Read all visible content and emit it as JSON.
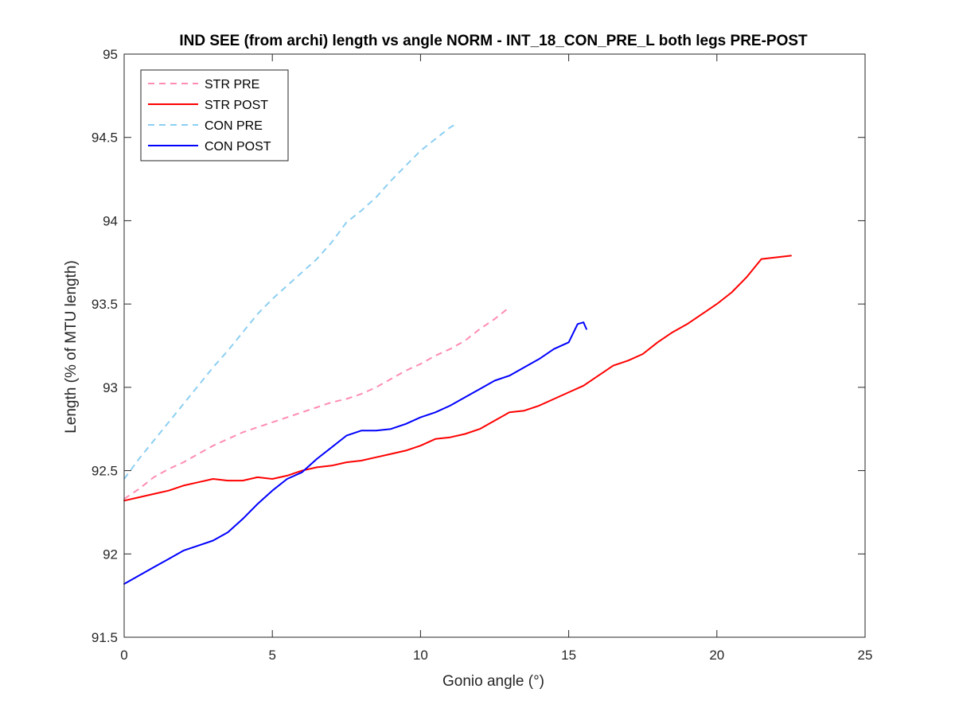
{
  "chart_data": {
    "type": "line",
    "title": "IND SEE (from archi) length vs angle NORM - INT_18_CON_PRE_L both legs PRE-POST",
    "xlabel": "Gonio angle (°)",
    "ylabel": "Length (% of MTU length)",
    "xlim": [
      0,
      25
    ],
    "ylim": [
      91.5,
      95
    ],
    "xticks": [
      0,
      5,
      10,
      15,
      20,
      25
    ],
    "yticks": [
      91.5,
      92,
      92.5,
      93,
      93.5,
      94,
      94.5,
      95
    ],
    "xtick_labels": [
      "0",
      "5",
      "10",
      "15",
      "20",
      "25"
    ],
    "ytick_labels": [
      "91.5",
      "92",
      "92.5",
      "93",
      "93.5",
      "94",
      "94.5",
      "95"
    ],
    "grid": false,
    "legend_position": "top-left",
    "series": [
      {
        "name": "STR PRE",
        "color": "#ff8cb3",
        "style": "dashed",
        "x": [
          0,
          0.5,
          1,
          1.5,
          2,
          2.5,
          3,
          3.5,
          4,
          4.5,
          5,
          5.5,
          6,
          6.5,
          7,
          7.5,
          8,
          8.5,
          9,
          9.5,
          10,
          10.5,
          11,
          11.5,
          12,
          12.5,
          13
        ],
        "y": [
          92.33,
          92.39,
          92.46,
          92.51,
          92.55,
          92.6,
          92.65,
          92.69,
          92.73,
          92.76,
          92.79,
          92.82,
          92.85,
          92.88,
          92.91,
          92.93,
          92.96,
          93,
          93.05,
          93.1,
          93.14,
          93.19,
          93.23,
          93.28,
          93.35,
          93.41,
          93.48
        ]
      },
      {
        "name": "STR POST",
        "color": "#ff0000",
        "style": "solid",
        "x": [
          0,
          0.5,
          1,
          1.5,
          2,
          2.5,
          3,
          3.5,
          4,
          4.5,
          5,
          5.5,
          6,
          6.5,
          7,
          7.5,
          8,
          8.5,
          9,
          9.5,
          10,
          10.5,
          11,
          11.5,
          12,
          12.5,
          13,
          13.5,
          14,
          14.5,
          15,
          15.5,
          16,
          16.5,
          17,
          17.5,
          18,
          18.5,
          19,
          19.5,
          20,
          20.5,
          21,
          21.5,
          22,
          22.5
        ],
        "y": [
          92.32,
          92.34,
          92.36,
          92.38,
          92.41,
          92.43,
          92.45,
          92.44,
          92.44,
          92.46,
          92.45,
          92.47,
          92.5,
          92.52,
          92.53,
          92.55,
          92.56,
          92.58,
          92.6,
          92.62,
          92.65,
          92.69,
          92.7,
          92.72,
          92.75,
          92.8,
          92.85,
          92.86,
          92.89,
          92.93,
          92.97,
          93.01,
          93.07,
          93.13,
          93.16,
          93.2,
          93.27,
          93.33,
          93.38,
          93.44,
          93.5,
          93.57,
          93.66,
          93.77,
          93.78,
          93.79
        ]
      },
      {
        "name": "CON PRE",
        "color": "#8ccff2",
        "style": "dashed",
        "x": [
          0,
          0.5,
          1,
          1.5,
          2,
          2.5,
          3,
          3.5,
          4,
          4.5,
          5,
          5.5,
          6,
          6.5,
          7,
          7.5,
          8,
          8.5,
          9,
          9.5,
          10,
          10.5,
          11,
          11.2
        ],
        "y": [
          92.45,
          92.57,
          92.68,
          92.79,
          92.9,
          93.01,
          93.12,
          93.22,
          93.33,
          93.44,
          93.53,
          93.61,
          93.69,
          93.77,
          93.87,
          93.99,
          94.06,
          94.14,
          94.24,
          94.33,
          94.42,
          94.49,
          94.56,
          94.58
        ]
      },
      {
        "name": "CON POST",
        "color": "#0000ff",
        "style": "solid",
        "x": [
          0,
          0.5,
          1,
          1.5,
          2,
          2.5,
          3,
          3.5,
          4,
          4.5,
          5,
          5.5,
          6,
          6.5,
          7,
          7.5,
          8,
          8.5,
          9,
          9.5,
          10,
          10.5,
          11,
          11.5,
          12,
          12.5,
          13,
          13.5,
          14,
          14.5,
          15,
          15.3,
          15.5,
          15.6
        ],
        "y": [
          91.82,
          91.87,
          91.92,
          91.97,
          92.02,
          92.05,
          92.08,
          92.13,
          92.21,
          92.3,
          92.38,
          92.45,
          92.49,
          92.57,
          92.64,
          92.71,
          92.74,
          92.74,
          92.75,
          92.78,
          92.82,
          92.85,
          92.89,
          92.94,
          92.99,
          93.04,
          93.07,
          93.12,
          93.17,
          93.23,
          93.27,
          93.38,
          93.39,
          93.35
        ]
      }
    ]
  }
}
